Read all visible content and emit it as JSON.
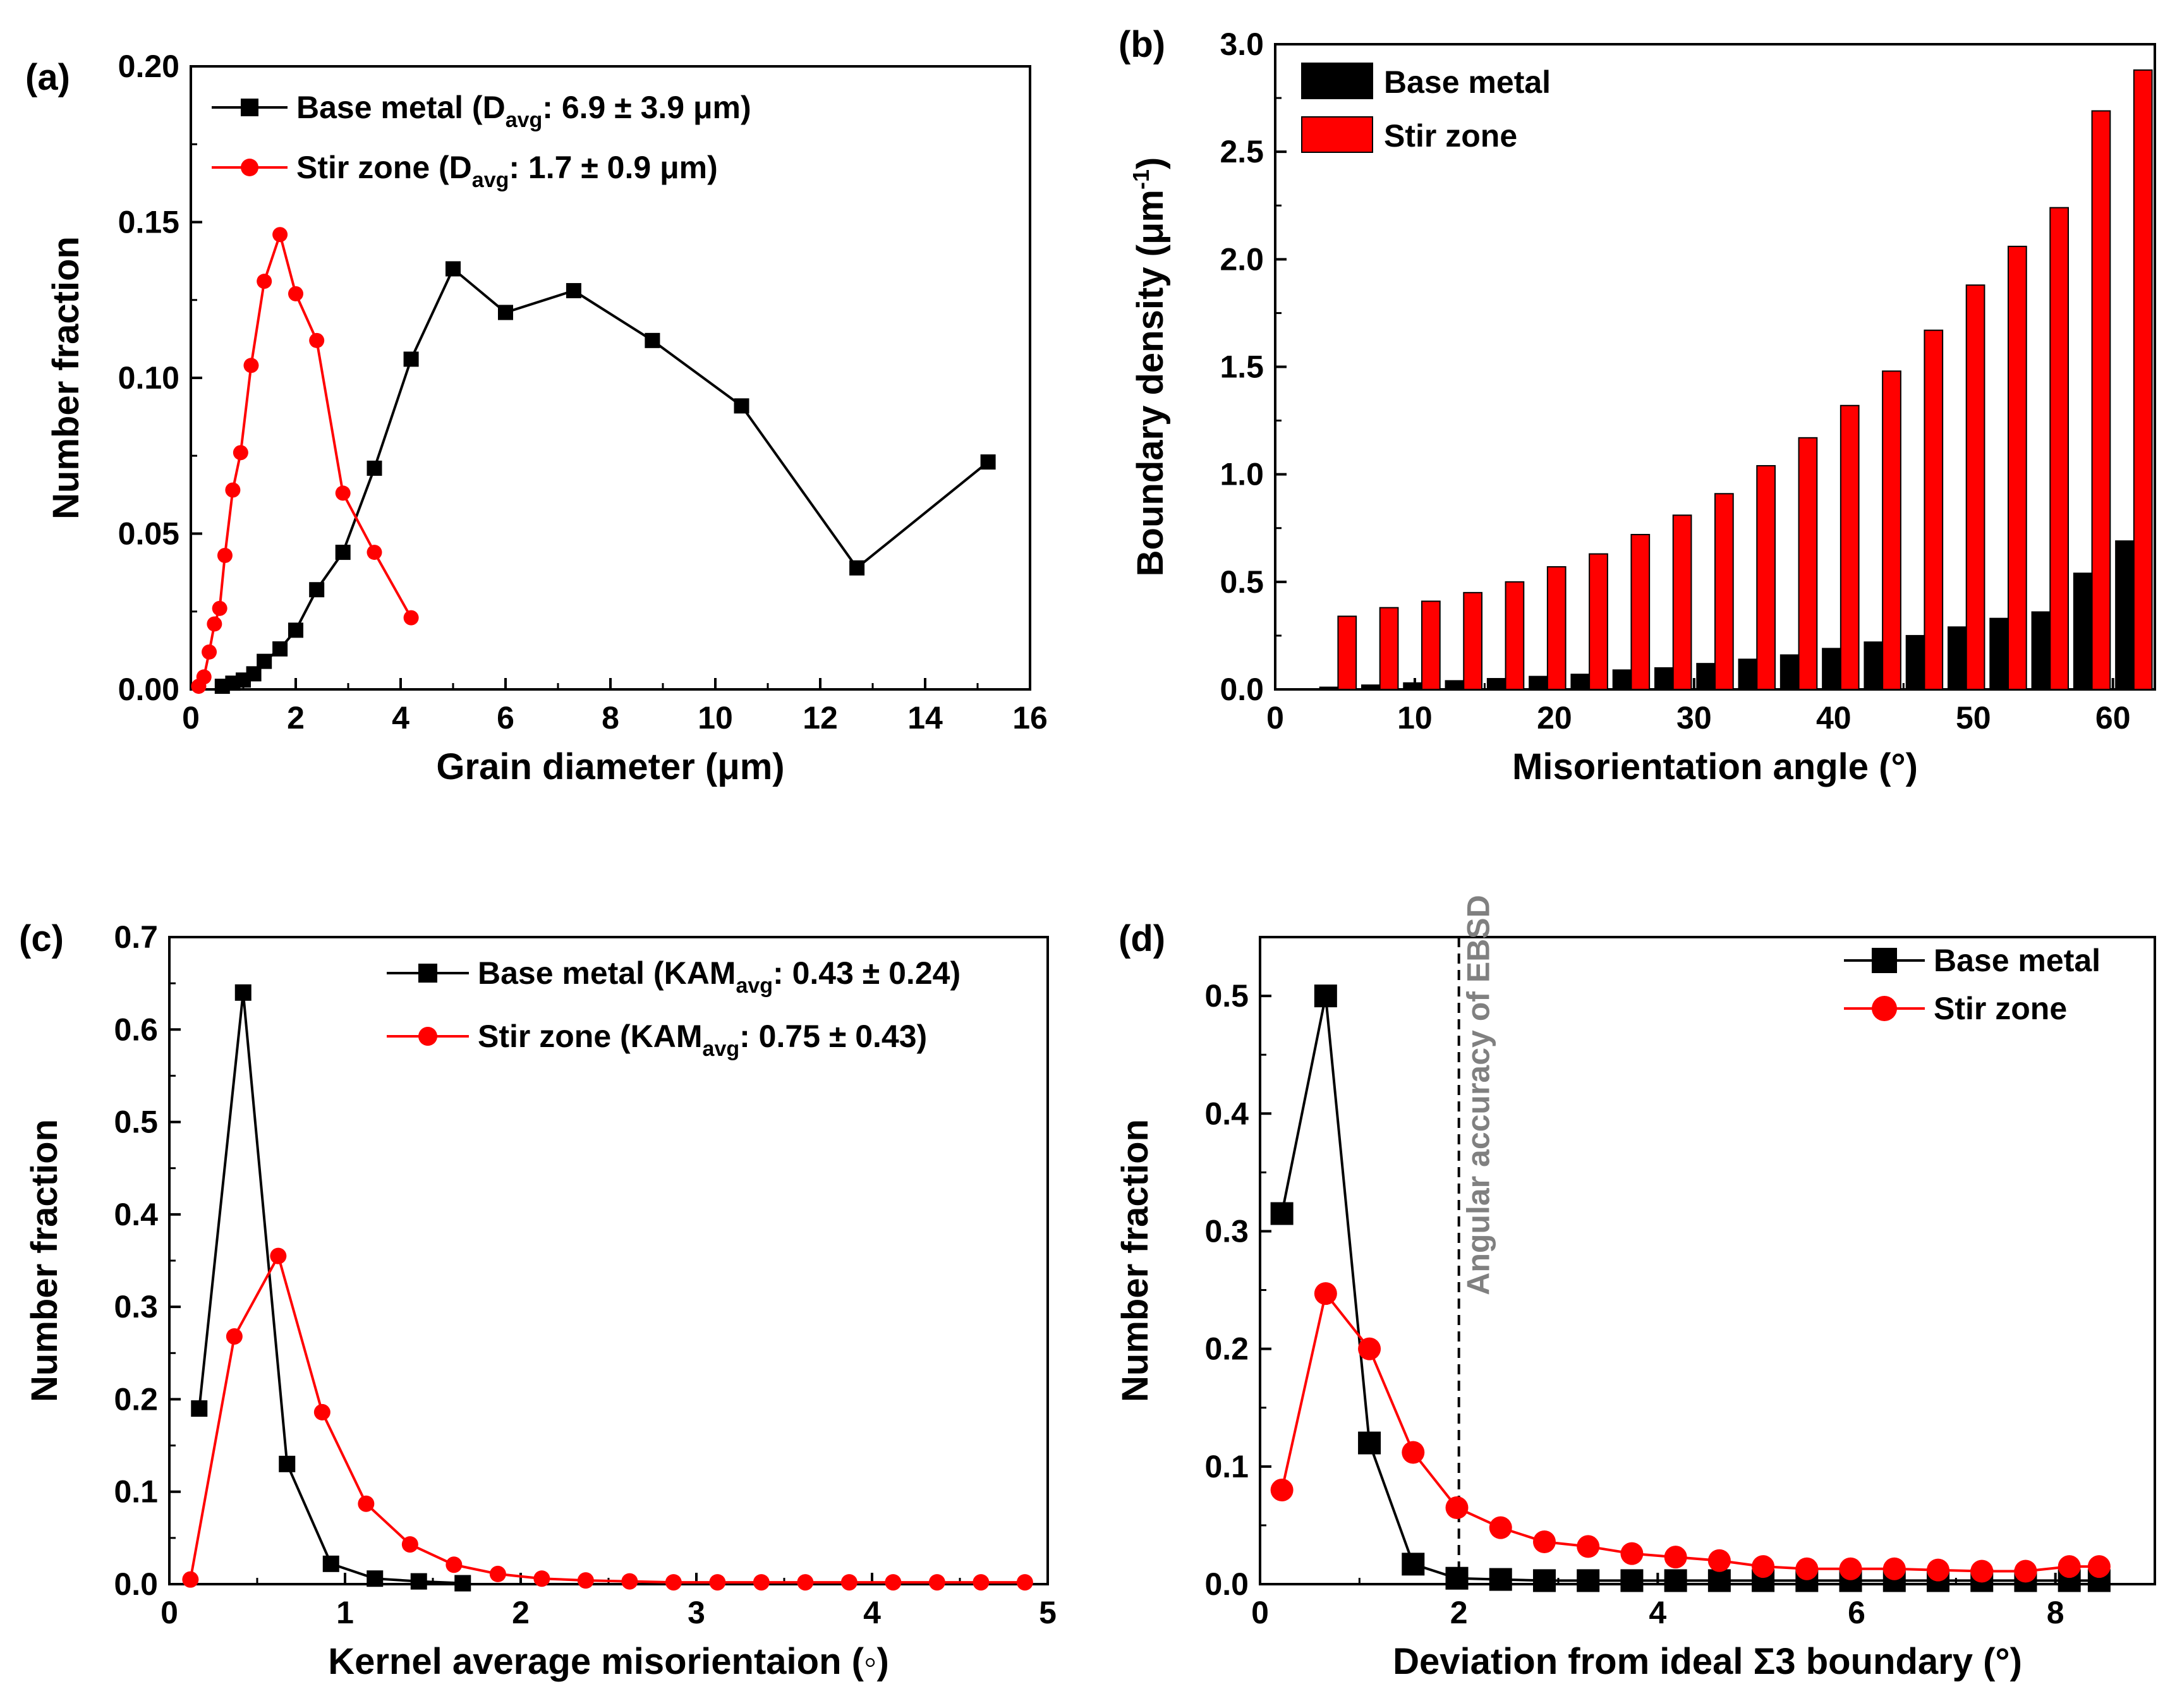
{
  "colors": {
    "base_metal": "#000000",
    "stir_zone": "#ff0000",
    "annotation": "#808080"
  },
  "chart_data": [
    {
      "id": "a",
      "type": "line",
      "panel_tag": "(a)",
      "xlabel": "Grain diameter (μm)",
      "ylabel": "Number fraction",
      "xlim": [
        0,
        16
      ],
      "ylim": [
        0,
        0.2
      ],
      "xticks": [
        0,
        2,
        4,
        6,
        8,
        10,
        12,
        14,
        16
      ],
      "xtick_labels": [
        "0",
        "2",
        "4",
        "6",
        "8",
        "10",
        "12",
        "14",
        "16"
      ],
      "yticks": [
        0,
        0.05,
        0.1,
        0.15,
        0.2
      ],
      "ytick_labels": [
        "0.00",
        "0.05",
        "0.10",
        "0.15",
        "0.20"
      ],
      "marker_size": 24,
      "series": [
        {
          "name": "Base metal",
          "legend": {
            "prefix": "Base metal  (D",
            "sub": "avg",
            "suffix": ": 6.9 ± 3.9 μm)"
          },
          "color": "#000000",
          "marker": "square",
          "x": [
            0.6,
            0.8,
            1.0,
            1.2,
            1.4,
            1.7,
            2.0,
            2.4,
            2.9,
            3.5,
            4.2,
            5.0,
            6.0,
            7.3,
            8.8,
            10.5,
            12.7,
            15.2
          ],
          "y": [
            0.001,
            0.002,
            0.003,
            0.005,
            0.009,
            0.013,
            0.019,
            0.032,
            0.044,
            0.071,
            0.106,
            0.135,
            0.121,
            0.128,
            0.112,
            0.091,
            0.039,
            0.073
          ]
        },
        {
          "name": "Stir zone",
          "legend": {
            "prefix": "Stir zone (D",
            "sub": "avg",
            "suffix": ": 1.7 ± 0.9 μm)"
          },
          "color": "#ff0000",
          "marker": "circle",
          "x": [
            0.15,
            0.25,
            0.35,
            0.45,
            0.55,
            0.65,
            0.8,
            0.95,
            1.15,
            1.4,
            1.7,
            2.0,
            2.4,
            2.9,
            3.5,
            4.2
          ],
          "y": [
            0.001,
            0.004,
            0.012,
            0.021,
            0.026,
            0.043,
            0.064,
            0.076,
            0.104,
            0.131,
            0.146,
            0.127,
            0.112,
            0.063,
            0.044,
            0.023
          ]
        }
      ]
    },
    {
      "id": "b",
      "type": "bar",
      "panel_tag": "(b)",
      "xlabel": "Misorientation angle (°)",
      "ylabel": {
        "prefix": "Boundary density (μm",
        "sup": "-1",
        "suffix": ")"
      },
      "xlim": [
        0,
        63
      ],
      "ylim": [
        0,
        3.0
      ],
      "xticks": [
        0,
        10,
        20,
        30,
        40,
        50,
        60
      ],
      "xtick_labels": [
        "0",
        "10",
        "20",
        "30",
        "40",
        "50",
        "60"
      ],
      "yticks": [
        0,
        0.5,
        1.0,
        1.5,
        2.0,
        2.5,
        3.0
      ],
      "ytick_labels": [
        "0.0",
        "0.5",
        "1.0",
        "1.5",
        "2.0",
        "2.5",
        "3.0"
      ],
      "bar_width": 1.3,
      "categories": [
        4.5,
        7.5,
        10.5,
        13.5,
        16.5,
        19.5,
        22.5,
        25.5,
        28.5,
        31.5,
        34.5,
        37.5,
        40.5,
        43.5,
        46.5,
        49.5,
        52.5,
        55.5,
        58.5,
        61.5
      ],
      "series": [
        {
          "name": "Base metal",
          "color": "#000000",
          "values": [
            0.01,
            0.02,
            0.03,
            0.04,
            0.05,
            0.06,
            0.07,
            0.09,
            0.1,
            0.12,
            0.14,
            0.16,
            0.19,
            0.22,
            0.25,
            0.29,
            0.33,
            0.36,
            0.54,
            0.69
          ]
        },
        {
          "name": "Stir zone",
          "color": "#ff0000",
          "values": [
            0.34,
            0.38,
            0.41,
            0.45,
            0.5,
            0.57,
            0.63,
            0.72,
            0.81,
            0.91,
            1.04,
            1.17,
            1.32,
            1.48,
            1.67,
            1.88,
            2.06,
            2.24,
            2.69,
            2.88
          ]
        }
      ]
    },
    {
      "id": "c",
      "type": "line",
      "panel_tag": "(c)",
      "xlabel": "Kernel average misorientaion (◦)",
      "ylabel": "Number fraction",
      "xlim": [
        0,
        5
      ],
      "ylim": [
        0,
        0.7
      ],
      "xticks": [
        0,
        1,
        2,
        3,
        4,
        5
      ],
      "xtick_labels": [
        "0",
        "1",
        "2",
        "3",
        "4",
        "5"
      ],
      "yticks": [
        0,
        0.1,
        0.2,
        0.3,
        0.4,
        0.5,
        0.6,
        0.7
      ],
      "ytick_labels": [
        "0.0",
        "0.1",
        "0.2",
        "0.3",
        "0.4",
        "0.5",
        "0.6",
        "0.7"
      ],
      "marker_size": 26,
      "series": [
        {
          "name": "Base metal",
          "legend": {
            "prefix": "Base metal (KAM",
            "sub": "avg",
            "suffix": ": 0.43 ± 0.24)"
          },
          "color": "#000000",
          "marker": "square",
          "x": [
            0.17,
            0.42,
            0.67,
            0.92,
            1.17,
            1.42,
            1.67
          ],
          "y": [
            0.19,
            0.64,
            0.13,
            0.022,
            0.006,
            0.003,
            0.001
          ]
        },
        {
          "name": "Stir zone",
          "legend": {
            "prefix": "Stir zone (KAM",
            "sub": "avg",
            "suffix": ": 0.75 ± 0.43)"
          },
          "color": "#ff0000",
          "marker": "circle",
          "x": [
            0.12,
            0.37,
            0.62,
            0.87,
            1.12,
            1.37,
            1.62,
            1.87,
            2.12,
            2.37,
            2.62,
            2.87,
            3.12,
            3.37,
            3.62,
            3.87,
            4.12,
            4.37,
            4.62,
            4.87
          ],
          "y": [
            0.005,
            0.268,
            0.355,
            0.186,
            0.087,
            0.043,
            0.021,
            0.011,
            0.006,
            0.004,
            0.003,
            0.002,
            0.002,
            0.002,
            0.002,
            0.002,
            0.002,
            0.002,
            0.002,
            0.002
          ]
        }
      ]
    },
    {
      "id": "d",
      "type": "line",
      "panel_tag": "(d)",
      "xlabel": "Deviation from ideal Σ3 boundary (°)",
      "ylabel": "Number fraction",
      "xlim": [
        0,
        9
      ],
      "ylim": [
        0,
        0.55
      ],
      "xticks": [
        0,
        2,
        4,
        6,
        8
      ],
      "xtick_labels": [
        "0",
        "2",
        "4",
        "6",
        "8"
      ],
      "yticks": [
        0,
        0.1,
        0.2,
        0.3,
        0.4,
        0.5
      ],
      "ytick_labels": [
        "0.0",
        "0.1",
        "0.2",
        "0.3",
        "0.4",
        "0.5"
      ],
      "marker_size": 36,
      "annotation": {
        "x": 2.0,
        "label": "Angular accuracy of EBSD"
      },
      "series": [
        {
          "name": "Base metal",
          "legend": {
            "prefix": "Base metal",
            "sub": "",
            "suffix": ""
          },
          "color": "#000000",
          "marker": "square",
          "x": [
            0.22,
            0.66,
            1.1,
            1.54,
            1.98,
            2.42,
            2.86,
            3.3,
            3.74,
            4.18,
            4.62,
            5.06,
            5.5,
            5.94,
            6.38,
            6.82,
            7.26,
            7.7,
            8.14,
            8.44
          ],
          "y": [
            0.315,
            0.5,
            0.12,
            0.017,
            0.005,
            0.004,
            0.003,
            0.003,
            0.003,
            0.003,
            0.003,
            0.003,
            0.003,
            0.003,
            0.003,
            0.003,
            0.003,
            0.003,
            0.003,
            0.003
          ]
        },
        {
          "name": "Stir zone",
          "legend": {
            "prefix": "Stir zone",
            "sub": "",
            "suffix": ""
          },
          "color": "#ff0000",
          "marker": "circle",
          "x": [
            0.22,
            0.66,
            1.1,
            1.54,
            1.98,
            2.42,
            2.86,
            3.3,
            3.74,
            4.18,
            4.62,
            5.06,
            5.5,
            5.94,
            6.38,
            6.82,
            7.26,
            7.7,
            8.14,
            8.44
          ],
          "y": [
            0.08,
            0.247,
            0.2,
            0.112,
            0.065,
            0.048,
            0.036,
            0.032,
            0.026,
            0.023,
            0.02,
            0.015,
            0.013,
            0.013,
            0.013,
            0.012,
            0.011,
            0.011,
            0.015,
            0.015
          ]
        }
      ]
    }
  ]
}
